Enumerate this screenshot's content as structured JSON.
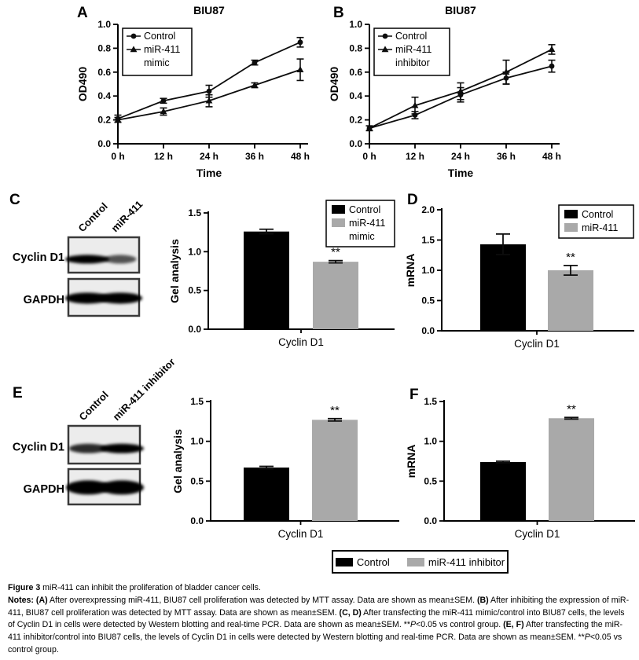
{
  "panels": {
    "A": "A",
    "B": "B",
    "C": "C",
    "D": "D",
    "E": "E",
    "F": "F"
  },
  "colors": {
    "black": "#000000",
    "gray": "#a9a9a9"
  },
  "chart_data": [
    {
      "id": "A",
      "type": "line",
      "title": "BIU87",
      "xlabel": "Time",
      "ylabel": "OD490",
      "categories": [
        "0 h",
        "12 h",
        "24 h",
        "36 h",
        "48 h"
      ],
      "ylim": [
        0,
        1.0
      ],
      "yticks": [
        "0.0",
        "0.2",
        "0.4",
        "0.6",
        "0.8",
        "1.0"
      ],
      "legend_position": "top-left",
      "series": [
        {
          "name": "Control",
          "marker": "circle",
          "legend_lines": [
            "Control"
          ],
          "values": [
            0.21,
            0.36,
            0.44,
            0.68,
            0.85
          ],
          "errors": [
            0.03,
            0.02,
            0.05,
            0.02,
            0.04
          ]
        },
        {
          "name": "miR-411 mimic",
          "marker": "triangle",
          "legend_lines": [
            "miR-411",
            "mimic"
          ],
          "values": [
            0.2,
            0.27,
            0.36,
            0.49,
            0.62
          ],
          "errors": [
            0.02,
            0.03,
            0.05,
            0.02,
            0.09
          ]
        }
      ]
    },
    {
      "id": "B",
      "type": "line",
      "title": "BIU87",
      "xlabel": "Time",
      "ylabel": "OD490",
      "categories": [
        "0 h",
        "12 h",
        "24 h",
        "36 h",
        "48 h"
      ],
      "ylim": [
        0,
        1.0
      ],
      "yticks": [
        "0.0",
        "0.2",
        "0.4",
        "0.6",
        "0.8",
        "1.0"
      ],
      "legend_position": "top-left",
      "series": [
        {
          "name": "Control",
          "marker": "circle",
          "legend_lines": [
            "Control"
          ],
          "values": [
            0.13,
            0.24,
            0.41,
            0.55,
            0.65
          ],
          "errors": [
            0.02,
            0.03,
            0.06,
            0.05,
            0.05
          ]
        },
        {
          "name": "miR-411 inhibitor",
          "marker": "triangle",
          "legend_lines": [
            "miR-411",
            "inhibitor"
          ],
          "values": [
            0.13,
            0.32,
            0.44,
            0.6,
            0.79
          ],
          "errors": [
            0.02,
            0.07,
            0.07,
            0.1,
            0.04
          ]
        }
      ]
    },
    {
      "id": "C",
      "type": "bar",
      "ylabel": "Gel analysis",
      "categories": [
        "Cyclin D1"
      ],
      "ylim": [
        0,
        1.5
      ],
      "yticks": [
        "0.0",
        "0.5",
        "1.0",
        "1.5"
      ],
      "legend_position": "top-right",
      "show_legend": true,
      "series": [
        {
          "name": "Control",
          "color": "#000000",
          "legend_lines": [
            "Control"
          ],
          "values": [
            1.26
          ],
          "errors": [
            0.03
          ],
          "annotation": ""
        },
        {
          "name": "miR-411 mimic",
          "color": "#a9a9a9",
          "legend_lines": [
            "miR-411",
            "mimic"
          ],
          "values": [
            0.87
          ],
          "errors": [
            0.015
          ],
          "annotation": "**"
        }
      ]
    },
    {
      "id": "D",
      "type": "bar",
      "ylabel": "mRNA",
      "categories": [
        "Cyclin D1"
      ],
      "ylim": [
        0,
        2.0
      ],
      "yticks": [
        "0.0",
        "0.5",
        "1.0",
        "1.5",
        "2.0"
      ],
      "legend_position": "top-right",
      "show_legend": true,
      "series": [
        {
          "name": "Control",
          "color": "#000000",
          "legend_lines": [
            "Control"
          ],
          "values": [
            1.43
          ],
          "errors": [
            0.17
          ],
          "annotation": ""
        },
        {
          "name": "miR-411",
          "color": "#a9a9a9",
          "legend_lines": [
            "miR-411"
          ],
          "values": [
            1.0
          ],
          "errors": [
            0.08
          ],
          "annotation": "**"
        }
      ]
    },
    {
      "id": "E",
      "type": "bar",
      "ylabel": "Gel analysis",
      "categories": [
        "Cyclin D1"
      ],
      "ylim": [
        0,
        1.5
      ],
      "yticks": [
        "0.0",
        "0.5",
        "1.0",
        "1.5"
      ],
      "show_legend": false,
      "series": [
        {
          "name": "Control",
          "color": "#000000",
          "legend_lines": [
            "Control"
          ],
          "values": [
            0.67
          ],
          "errors": [
            0.015
          ],
          "annotation": ""
        },
        {
          "name": "miR-411 inhibitor",
          "color": "#a9a9a9",
          "legend_lines": [
            "miR-411 inhibitor"
          ],
          "values": [
            1.27
          ],
          "errors": [
            0.015
          ],
          "annotation": "**"
        }
      ]
    },
    {
      "id": "F",
      "type": "bar",
      "ylabel": "mRNA",
      "categories": [
        "Cyclin D1"
      ],
      "ylim": [
        0,
        1.5
      ],
      "yticks": [
        "0.0",
        "0.5",
        "1.0",
        "1.5"
      ],
      "show_legend": false,
      "series": [
        {
          "name": "Control",
          "color": "#000000",
          "legend_lines": [
            "Control"
          ],
          "values": [
            0.74
          ],
          "errors": [
            0.01
          ],
          "annotation": ""
        },
        {
          "name": "miR-411 inhibitor",
          "color": "#a9a9a9",
          "legend_lines": [
            "miR-411 inhibitor"
          ],
          "values": [
            1.29
          ],
          "errors": [
            0.01
          ],
          "annotation": "**"
        }
      ]
    }
  ],
  "blots": {
    "C": {
      "row_labels": [
        "Cyclin D1",
        "GAPDH"
      ],
      "lane_labels": [
        "Control",
        "miR-411"
      ],
      "band_intensities": [
        [
          1.0,
          0.5
        ],
        [
          1.0,
          1.0
        ]
      ]
    },
    "E": {
      "row_labels": [
        "Cyclin D1",
        "GAPDH"
      ],
      "lane_labels": [
        "Control",
        "miR-411 inhibitor"
      ],
      "band_intensities": [
        [
          0.75,
          1.0
        ],
        [
          1.0,
          1.0
        ]
      ]
    }
  },
  "bottom_legend": {
    "items": [
      {
        "label": "Control",
        "color": "#000000"
      },
      {
        "label": "miR-411 inhibitor",
        "color": "#a9a9a9"
      }
    ]
  },
  "figure": {
    "caption_title_segments": [
      {
        "t": "Figure 3 ",
        "b": true
      },
      {
        "t": "miR-411 can inhibit the proliferation of bladder cancer cells."
      }
    ],
    "caption_notes_segments": [
      {
        "t": "Notes: ",
        "b": true
      },
      {
        "t": "(",
        "b": true
      },
      {
        "t": "A",
        "b": true
      },
      {
        "t": ")",
        "b": true
      },
      {
        "t": " After overexpressing miR-411, BIU87 cell proliferation was detected by MTT assay. Data are shown as mean±SEM. "
      },
      {
        "t": "(",
        "b": true
      },
      {
        "t": "B",
        "b": true
      },
      {
        "t": ")",
        "b": true
      },
      {
        "t": " After inhibiting the expression of miR-411, BIU87 cell proliferation was detected by MTT assay. Data are shown as mean±SEM. "
      },
      {
        "t": "(",
        "b": true
      },
      {
        "t": "C, D",
        "b": true
      },
      {
        "t": ")",
        "b": true
      },
      {
        "t": " After transfecting the miR-411 mimic/control into BIU87 cells, the levels of Cyclin D1 in cells were detected by Western blotting and real-time PCR. Data are shown as mean±SEM. **"
      },
      {
        "t": "P",
        "i": true
      },
      {
        "t": "<0.05 vs control group. "
      },
      {
        "t": "(",
        "b": true
      },
      {
        "t": "E, F",
        "b": true
      },
      {
        "t": ")",
        "b": true
      },
      {
        "t": " After transfecting the miR-411 inhibitor/control into BIU87 cells, the levels of Cyclin D1 in cells were detected by Western blotting and real-time PCR. Data are shown as mean±SEM. **"
      },
      {
        "t": "P",
        "i": true
      },
      {
        "t": "<0.05 vs control group."
      }
    ]
  }
}
